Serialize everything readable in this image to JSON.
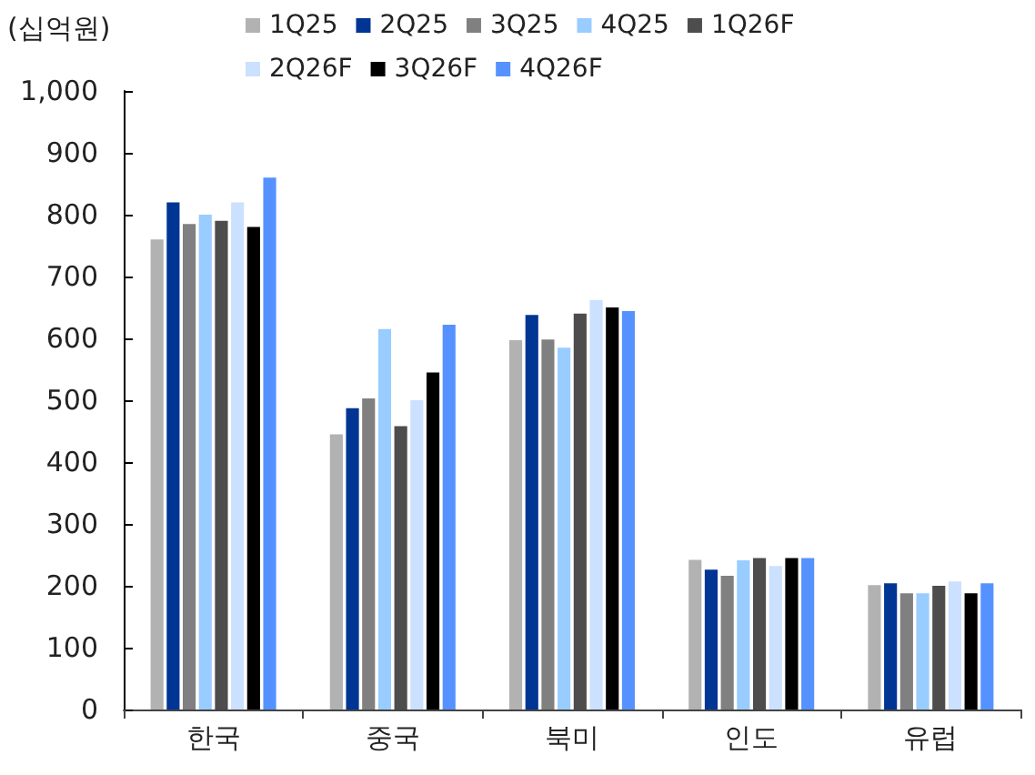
{
  "chart_data": {
    "type": "bar",
    "ylabel": "(십억원)",
    "categories": [
      "한국",
      "중국",
      "북미",
      "인도",
      "유럽"
    ],
    "series": [
      {
        "name": "1Q25",
        "color": "#b2b2b2",
        "values": [
          760,
          445,
          597,
          242,
          201
        ]
      },
      {
        "name": "2Q25",
        "color": "#003594",
        "values": [
          820,
          487,
          638,
          226,
          204
        ]
      },
      {
        "name": "3Q25",
        "color": "#808080",
        "values": [
          785,
          503,
          598,
          216,
          188
        ]
      },
      {
        "name": "4Q25",
        "color": "#99ccff",
        "values": [
          800,
          615,
          585,
          241,
          188
        ]
      },
      {
        "name": "1Q26F",
        "color": "#4d4d4d",
        "values": [
          790,
          458,
          640,
          245,
          200
        ]
      },
      {
        "name": "2Q26F",
        "color": "#cce0ff",
        "values": [
          820,
          500,
          662,
          232,
          207
        ]
      },
      {
        "name": "3Q26F",
        "color": "#000000",
        "values": [
          780,
          545,
          650,
          245,
          188
        ]
      },
      {
        "name": "4Q26F",
        "color": "#5592ff",
        "values": [
          860,
          622,
          644,
          245,
          204
        ]
      }
    ],
    "ylim": [
      0,
      1000
    ],
    "yticks": [
      0,
      100,
      200,
      300,
      400,
      500,
      600,
      700,
      800,
      900,
      {
        "value": 1000,
        "label": "1,000"
      }
    ],
    "legend": "top",
    "grid": false
  }
}
